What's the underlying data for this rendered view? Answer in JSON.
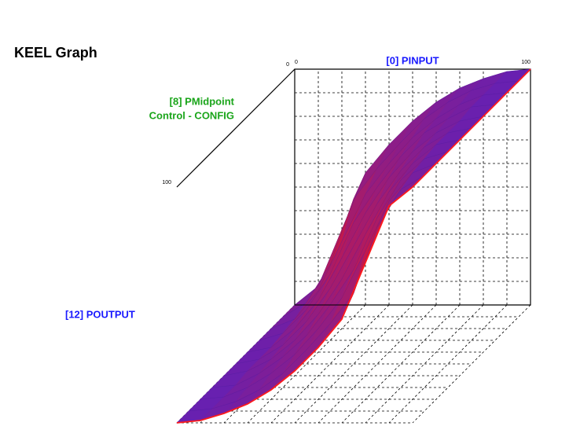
{
  "chart_data": {
    "type": "surface3d",
    "title": "KEEL Graph",
    "x_label": "[0] PINPUT",
    "depth_label": [
      "[8] PMidpoint",
      "Control - CONFIG"
    ],
    "z_label": "[12] POUTPUT",
    "x": [
      0,
      10,
      20,
      30,
      40,
      50,
      60,
      70,
      80,
      90,
      100
    ],
    "depth": [
      0,
      10,
      20,
      30,
      40,
      50,
      60,
      70,
      80,
      90,
      100
    ],
    "z": [
      [
        0,
        8,
        32,
        56,
        68,
        78,
        86,
        92,
        96,
        99,
        100
      ],
      [
        0,
        6,
        22,
        50,
        63,
        74,
        84,
        91,
        96,
        99,
        100
      ],
      [
        0,
        4,
        16,
        37,
        57,
        70,
        81,
        89,
        95,
        99,
        100
      ],
      [
        0,
        3,
        13,
        28,
        50,
        65,
        78,
        88,
        94,
        99,
        100
      ],
      [
        0,
        2,
        10,
        22,
        40,
        59,
        74,
        85,
        93,
        98,
        100
      ],
      [
        0,
        2,
        8,
        18,
        32,
        50,
        68,
        82,
        92,
        98,
        100
      ],
      [
        0,
        2,
        7,
        15,
        26,
        41,
        60,
        78,
        90,
        98,
        100
      ],
      [
        0,
        1,
        6,
        13,
        22,
        35,
        50,
        72,
        88,
        97,
        100
      ],
      [
        0,
        1,
        5,
        11,
        19,
        30,
        43,
        63,
        84,
        96,
        100
      ],
      [
        0,
        1,
        4,
        9,
        16,
        26,
        37,
        50,
        78,
        94,
        100
      ],
      [
        0,
        1,
        4,
        8,
        14,
        22,
        32,
        44,
        68,
        92,
        100
      ]
    ],
    "xlim": [
      0,
      100
    ],
    "xticks": [
      0,
      100
    ],
    "depth_lim": [
      0,
      100
    ],
    "depth_ticks": [
      0,
      100
    ],
    "zlim": [
      0,
      100
    ],
    "colors": {
      "low_slope": "#6420b4",
      "high_slope": "#c81946",
      "edge": "#ff1a1a"
    },
    "grid": true
  }
}
